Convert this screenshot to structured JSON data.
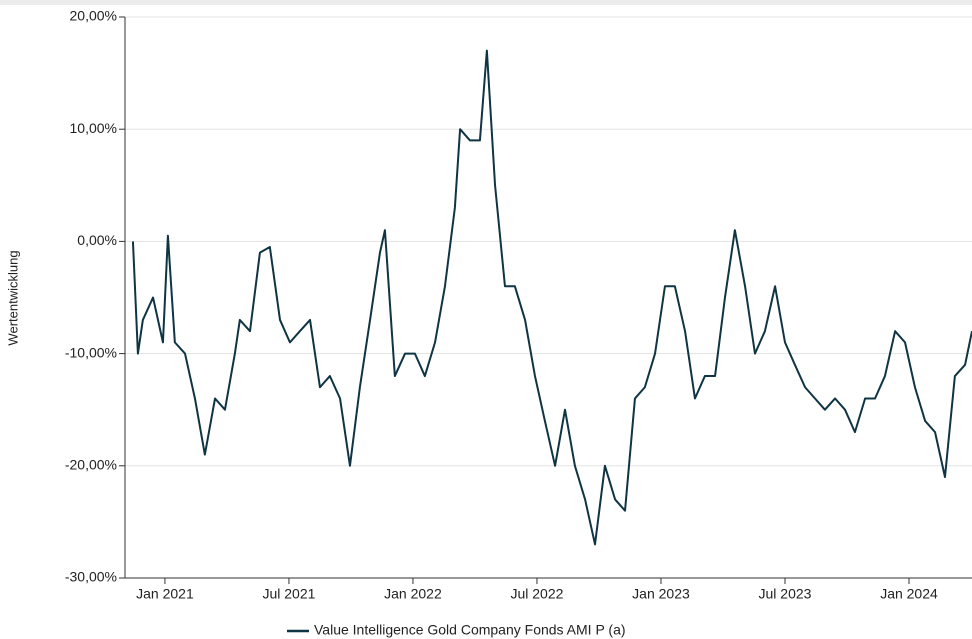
{
  "chart_data": {
    "type": "line",
    "y_label": "Wertentwicklung",
    "x": [
      2020.871,
      2020.891,
      2020.911,
      2020.952,
      2020.992,
      2021.012,
      2021.04,
      2021.081,
      2021.121,
      2021.161,
      2021.202,
      2021.242,
      2021.282,
      2021.302,
      2021.343,
      2021.383,
      2021.423,
      2021.464,
      2021.504,
      2021.544,
      2021.585,
      2021.625,
      2021.665,
      2021.706,
      2021.746,
      2021.786,
      2021.827,
      2021.867,
      2021.887,
      2021.927,
      2021.968,
      2022.008,
      2022.048,
      2022.089,
      2022.129,
      2022.169,
      2022.19,
      2022.23,
      2022.27,
      2022.298,
      2022.331,
      2022.371,
      2022.411,
      2022.452,
      2022.492,
      2022.532,
      2022.573,
      2022.613,
      2022.653,
      2022.694,
      2022.734,
      2022.774,
      2022.815,
      2022.855,
      2022.895,
      2022.935,
      2022.976,
      2023.016,
      2023.056,
      2023.097,
      2023.137,
      2023.177,
      2023.218,
      2023.258,
      2023.298,
      2023.339,
      2023.379,
      2023.419,
      2023.46,
      2023.5,
      2023.54,
      2023.581,
      2023.621,
      2023.661,
      2023.702,
      2023.742,
      2023.782,
      2023.823,
      2023.863,
      2023.903,
      2023.944,
      2023.984,
      2024.024,
      2024.065,
      2024.105,
      2024.145,
      2024.185,
      2024.226,
      2024.254
    ],
    "series": [
      {
        "name": "Value Intelligence Gold Company Fonds AMI P (a)",
        "color": "#0f3444",
        "values": [
          0,
          -10,
          -7,
          -5,
          -9,
          0.5,
          -9,
          -10,
          -14,
          -19,
          -14,
          -15,
          -10,
          -7,
          -8,
          -1,
          -0.5,
          -7,
          -9,
          -8,
          -7,
          -13,
          -12,
          -14,
          -20,
          -13,
          -7,
          -1,
          1,
          -12,
          -10,
          -10,
          -12,
          -9,
          -4,
          3,
          10,
          9,
          9,
          17,
          5,
          -4,
          -4,
          -7,
          -12,
          -16,
          -20,
          -15,
          -20,
          -23,
          -27,
          -20,
          -23,
          -24,
          -14,
          -13,
          -10,
          -4,
          -4,
          -8,
          -14,
          -12,
          -12,
          -5,
          1,
          -4,
          -10,
          -8,
          -4,
          -9,
          -11,
          -13,
          -14,
          -15,
          -14,
          -15,
          -17,
          -14,
          -14,
          -12,
          -8,
          -9,
          -13,
          -16,
          -17,
          -21,
          -12,
          -11,
          -8
        ]
      }
    ],
    "xlim": [
      2020.839,
      2024.254
    ],
    "xticks": [
      {
        "value": 2021,
        "label": "Jan 2021"
      },
      {
        "value": 2021.5,
        "label": "Jul 2021"
      },
      {
        "value": 2022,
        "label": "Jan 2022"
      },
      {
        "value": 2022.5,
        "label": "Jul 2022"
      },
      {
        "value": 2023,
        "label": "Jan 2023"
      },
      {
        "value": 2023.5,
        "label": "Jul 2023"
      },
      {
        "value": 2024,
        "label": "Jan 2024"
      }
    ],
    "ylim": [
      -30,
      20
    ],
    "yticks": [
      {
        "value": -30,
        "label": "-30,00%"
      },
      {
        "value": -20,
        "label": "-20,00%"
      },
      {
        "value": -10,
        "label": "-10,00%"
      },
      {
        "value": 0,
        "label": "0,00%"
      },
      {
        "value": 10,
        "label": "10,00%"
      },
      {
        "value": 20,
        "label": "20,00%"
      }
    ],
    "grid": true
  }
}
